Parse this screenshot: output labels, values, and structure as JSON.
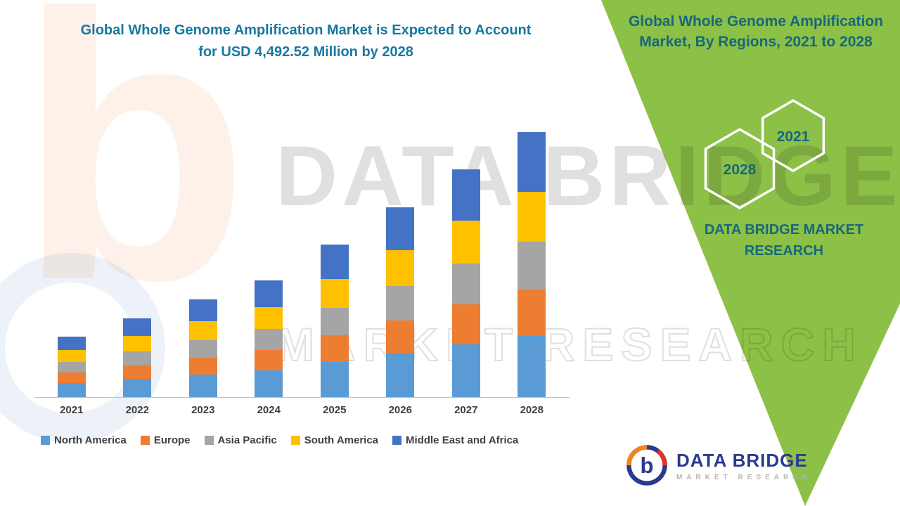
{
  "colors": {
    "green": "#8CC047",
    "teal": "#1878A0",
    "tealDark": "#17687A",
    "textDark": "#404040",
    "axis": "#C0C0C0",
    "navy": "#2B3A8F",
    "orange": "#F58220",
    "red": "#E63329",
    "grayLogo": "#B5B5B5"
  },
  "chart_data": {
    "type": "bar",
    "stacked": true,
    "title": "Global Whole Genome Amplification Market is Expected to Account for USD 4,492.52 Million by 2028",
    "unit": "USD Million",
    "categories": [
      "2021",
      "2022",
      "2023",
      "2024",
      "2025",
      "2026",
      "2027",
      "2028"
    ],
    "series": [
      {
        "name": "North America",
        "color": "#5B9BD5",
        "values": [
          235,
          305,
          380,
          455,
          595,
          740,
          890,
          1035
        ]
      },
      {
        "name": "Europe",
        "color": "#ED7D31",
        "values": [
          180,
          235,
          290,
          345,
          455,
          565,
          680,
          790
        ]
      },
      {
        "name": "Asia Pacific",
        "color": "#A5A5A5",
        "values": [
          185,
          240,
          300,
          355,
          465,
          580,
          695,
          810
        ]
      },
      {
        "name": "South America",
        "color": "#FFC000",
        "values": [
          200,
          255,
          315,
          375,
          490,
          610,
          730,
          850
        ]
      },
      {
        "name": "Middle East and Africa",
        "color": "#4472C4",
        "values": [
          230,
          300,
          370,
          445,
          580,
          720,
          865,
          1007.52
        ]
      }
    ],
    "totals": [
      1030,
      1335,
      1655,
      1975,
      2585,
      3215,
      3860,
      4492.52
    ],
    "ylim": [
      0,
      4600
    ],
    "grid": false,
    "legend_position": "bottom"
  },
  "side_panel": {
    "title": "Global Whole Genome Amplification Market, By Regions, 2021 to 2028",
    "hexagons": [
      {
        "label": "2028"
      },
      {
        "label": "2021"
      }
    ],
    "brand": "DATA BRIDGE MARKET RESEARCH"
  },
  "watermark": {
    "logo_letter": "b",
    "line1": "DATA BRIDGE",
    "line2": "MARKET RESEARCH"
  },
  "footer_logo": {
    "letter": "b",
    "brand": "DATA BRIDGE",
    "tagline": "MARKET RESEARCH"
  }
}
